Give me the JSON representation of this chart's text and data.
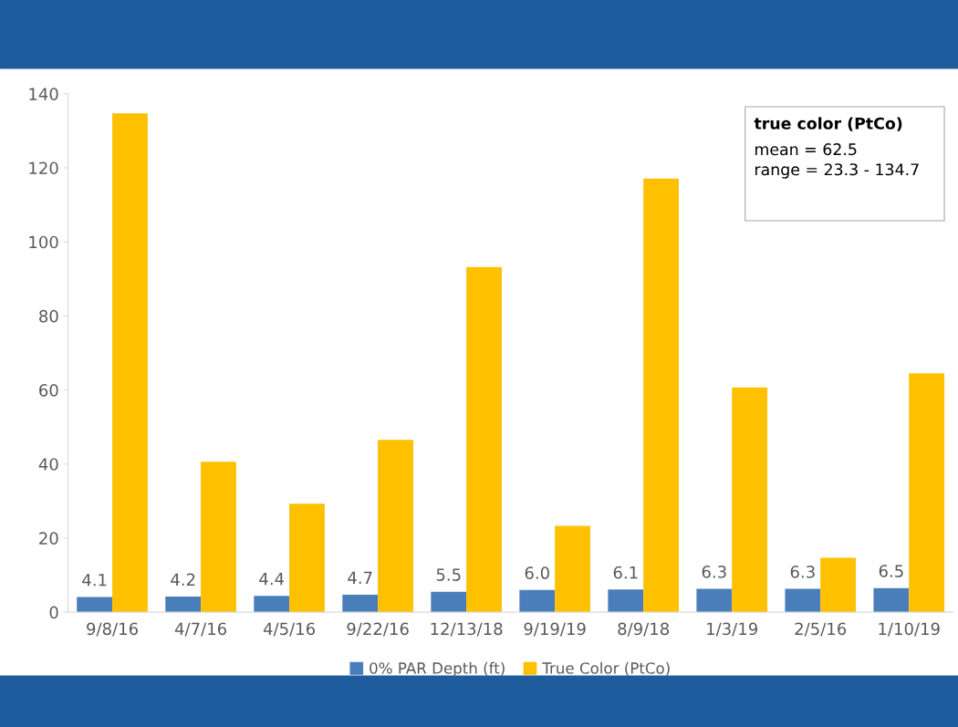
{
  "chart_data": {
    "type": "bar",
    "categories": [
      "9/8/16",
      "4/7/16",
      "4/5/16",
      "9/22/16",
      "12/13/18",
      "9/19/19",
      "8/9/18",
      "1/3/19",
      "2/5/16",
      "1/10/19"
    ],
    "series": [
      {
        "name": "0% PAR Depth (ft)",
        "color": "#4a7ebb",
        "values": [
          4.1,
          4.2,
          4.4,
          4.7,
          5.5,
          6.0,
          6.1,
          6.3,
          6.3,
          6.5
        ],
        "value_labels": [
          "4.1",
          "4.2",
          "4.4",
          "4.7",
          "5.5",
          "6.0",
          "6.1",
          "6.3",
          "6.3",
          "6.5"
        ]
      },
      {
        "name": "True Color (PtCo)",
        "color": "#ffc000",
        "values": [
          134.7,
          40.6,
          29.3,
          46.5,
          93.2,
          23.3,
          117.1,
          60.7,
          14.7,
          64.5
        ]
      }
    ],
    "ylim": [
      0,
      140
    ],
    "yticks": [
      0,
      20,
      40,
      60,
      80,
      100,
      120,
      140
    ],
    "grid": false,
    "legend": "bottom",
    "annotations": [
      "true color (PtCo)\nmean = 62.5\nrange = 23.3 - 134.7"
    ]
  }
}
